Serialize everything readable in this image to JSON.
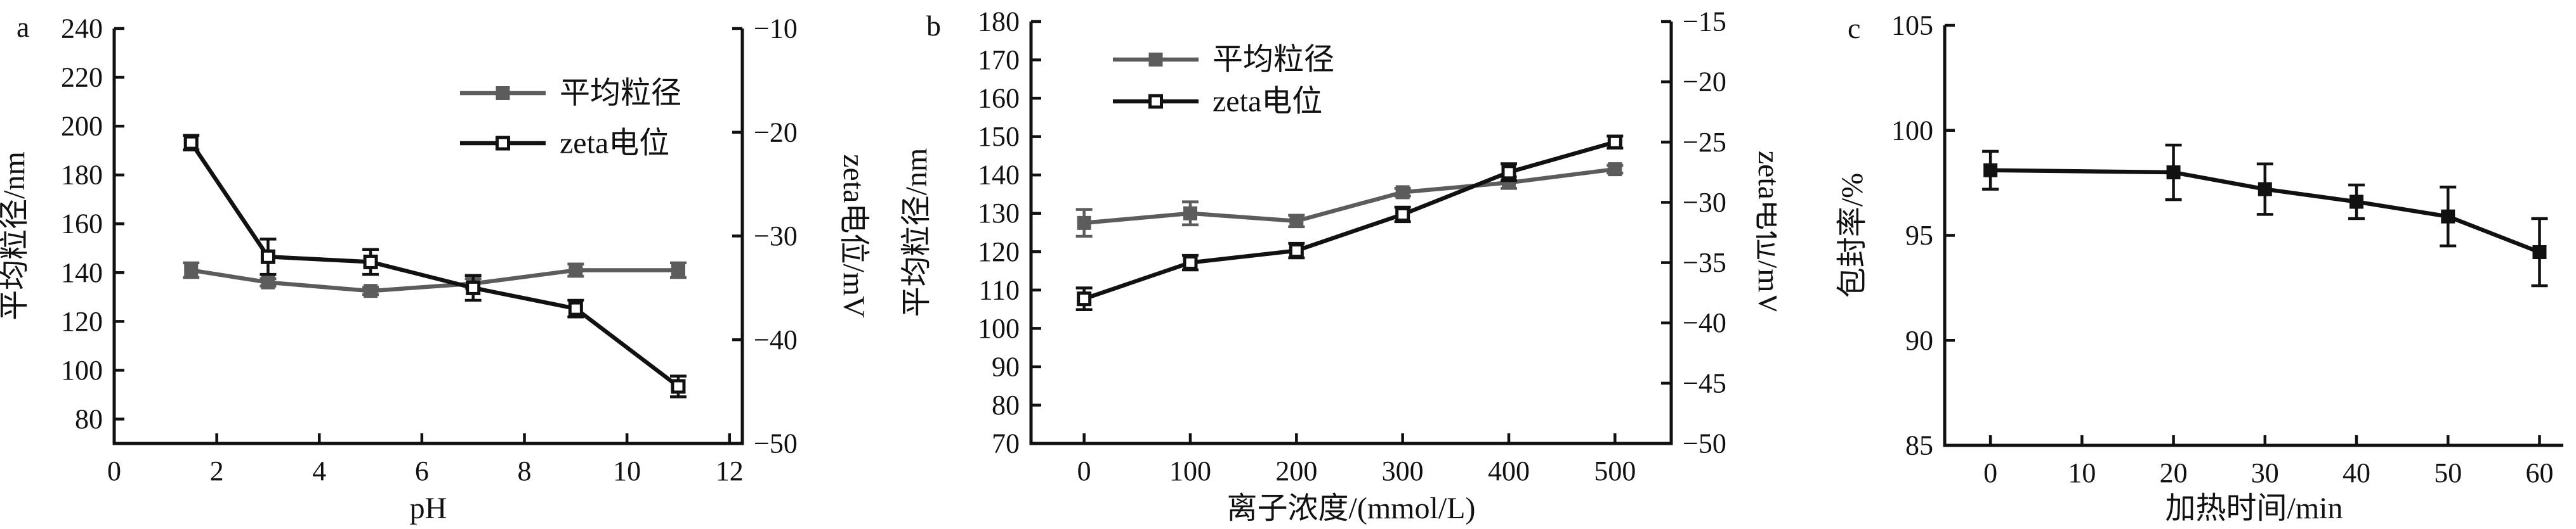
{
  "figure_title": "",
  "colors": {
    "black_series": "#111111",
    "gray_series": "#5c5c5c",
    "axis": "#111111",
    "background": "#ffffff"
  },
  "chart_data": [
    {
      "type": "line",
      "panel_label": "a",
      "x": {
        "label": "pH",
        "range": [
          0,
          12.25
        ],
        "ticks": [
          0,
          2,
          4,
          6,
          8,
          10,
          12
        ]
      },
      "y_left": {
        "label": "平均粒径/nm",
        "range": [
          70,
          240
        ],
        "ticks": [
          80,
          100,
          120,
          140,
          160,
          180,
          200,
          220,
          240
        ]
      },
      "y_right": {
        "label": "zeta电位/mV",
        "range": [
          -50,
          -10
        ],
        "ticks": [
          -50,
          -40,
          -30,
          -20,
          -10
        ]
      },
      "legend": {
        "position": "top-right",
        "entries": [
          "平均粒径",
          "zeta电位"
        ]
      },
      "grid": false,
      "series": [
        {
          "name": "平均粒径",
          "axis": "left",
          "marker": "filled-square",
          "color": "#5c5c5c",
          "x": [
            1.5,
            3,
            5,
            7,
            9,
            11
          ],
          "y": [
            141,
            136,
            132.5,
            135.5,
            141,
            141
          ],
          "yerr": [
            3,
            1.5,
            1.5,
            2,
            2.5,
            3
          ]
        },
        {
          "name": "zeta电位",
          "axis": "right",
          "marker": "open-square",
          "color": "#111111",
          "x": [
            1.5,
            3,
            5,
            7,
            9,
            11
          ],
          "y": [
            -21,
            -32,
            -32.5,
            -35,
            -37,
            -44.5
          ],
          "yerr": [
            0.7,
            1.7,
            1.2,
            1.2,
            0.8,
            1.0
          ]
        }
      ]
    },
    {
      "type": "line",
      "panel_label": "b",
      "x": {
        "label": "离子浓度/(mmol/L)",
        "range": [
          -50,
          553
        ],
        "ticks": [
          0,
          100,
          200,
          300,
          400,
          500
        ]
      },
      "y_left": {
        "label": "平均粒径/nm",
        "range": [
          70,
          180
        ],
        "ticks": [
          70,
          80,
          90,
          100,
          110,
          120,
          130,
          140,
          150,
          160,
          170,
          180
        ]
      },
      "y_right": {
        "label": "zeta电位/mV",
        "range": [
          -50,
          -15
        ],
        "ticks": [
          -50,
          -45,
          -40,
          -35,
          -30,
          -25,
          -20,
          -15
        ]
      },
      "legend": {
        "position": "top-left",
        "entries": [
          "平均粒径",
          "zeta电位"
        ]
      },
      "grid": false,
      "series": [
        {
          "name": "平均粒径",
          "axis": "left",
          "marker": "filled-square",
          "color": "#5c5c5c",
          "x": [
            0,
            100,
            200,
            300,
            400,
            500
          ],
          "y": [
            127.5,
            130,
            128,
            135.5,
            138,
            141.5
          ],
          "yerr": [
            3.5,
            3,
            1.5,
            1,
            1.5,
            1
          ]
        },
        {
          "name": "zeta电位",
          "axis": "right",
          "marker": "open-square",
          "color": "#111111",
          "x": [
            0,
            100,
            200,
            300,
            400,
            500
          ],
          "y": [
            -38,
            -35,
            -34,
            -31,
            -27.5,
            -25
          ],
          "yerr": [
            0.9,
            0.6,
            0.6,
            0.6,
            0.7,
            0.5
          ]
        }
      ]
    },
    {
      "type": "line",
      "panel_label": "c",
      "x": {
        "label": "加热时间/min",
        "range": [
          -5,
          62.6
        ],
        "ticks": [
          0,
          10,
          20,
          30,
          40,
          50,
          60
        ]
      },
      "y_left": {
        "label": "包封率/%",
        "range": [
          85,
          105
        ],
        "ticks": [
          85,
          90,
          95,
          100,
          105
        ]
      },
      "y_right": null,
      "legend": null,
      "grid": false,
      "series": [
        {
          "name": "包封率",
          "axis": "left",
          "marker": "filled-square",
          "color": "#111111",
          "x": [
            0,
            20,
            30,
            40,
            50,
            60
          ],
          "y": [
            98.1,
            98.0,
            97.2,
            96.6,
            95.9,
            94.2
          ],
          "yerr": [
            0.9,
            1.3,
            1.2,
            0.8,
            1.4,
            1.6
          ]
        }
      ]
    }
  ]
}
